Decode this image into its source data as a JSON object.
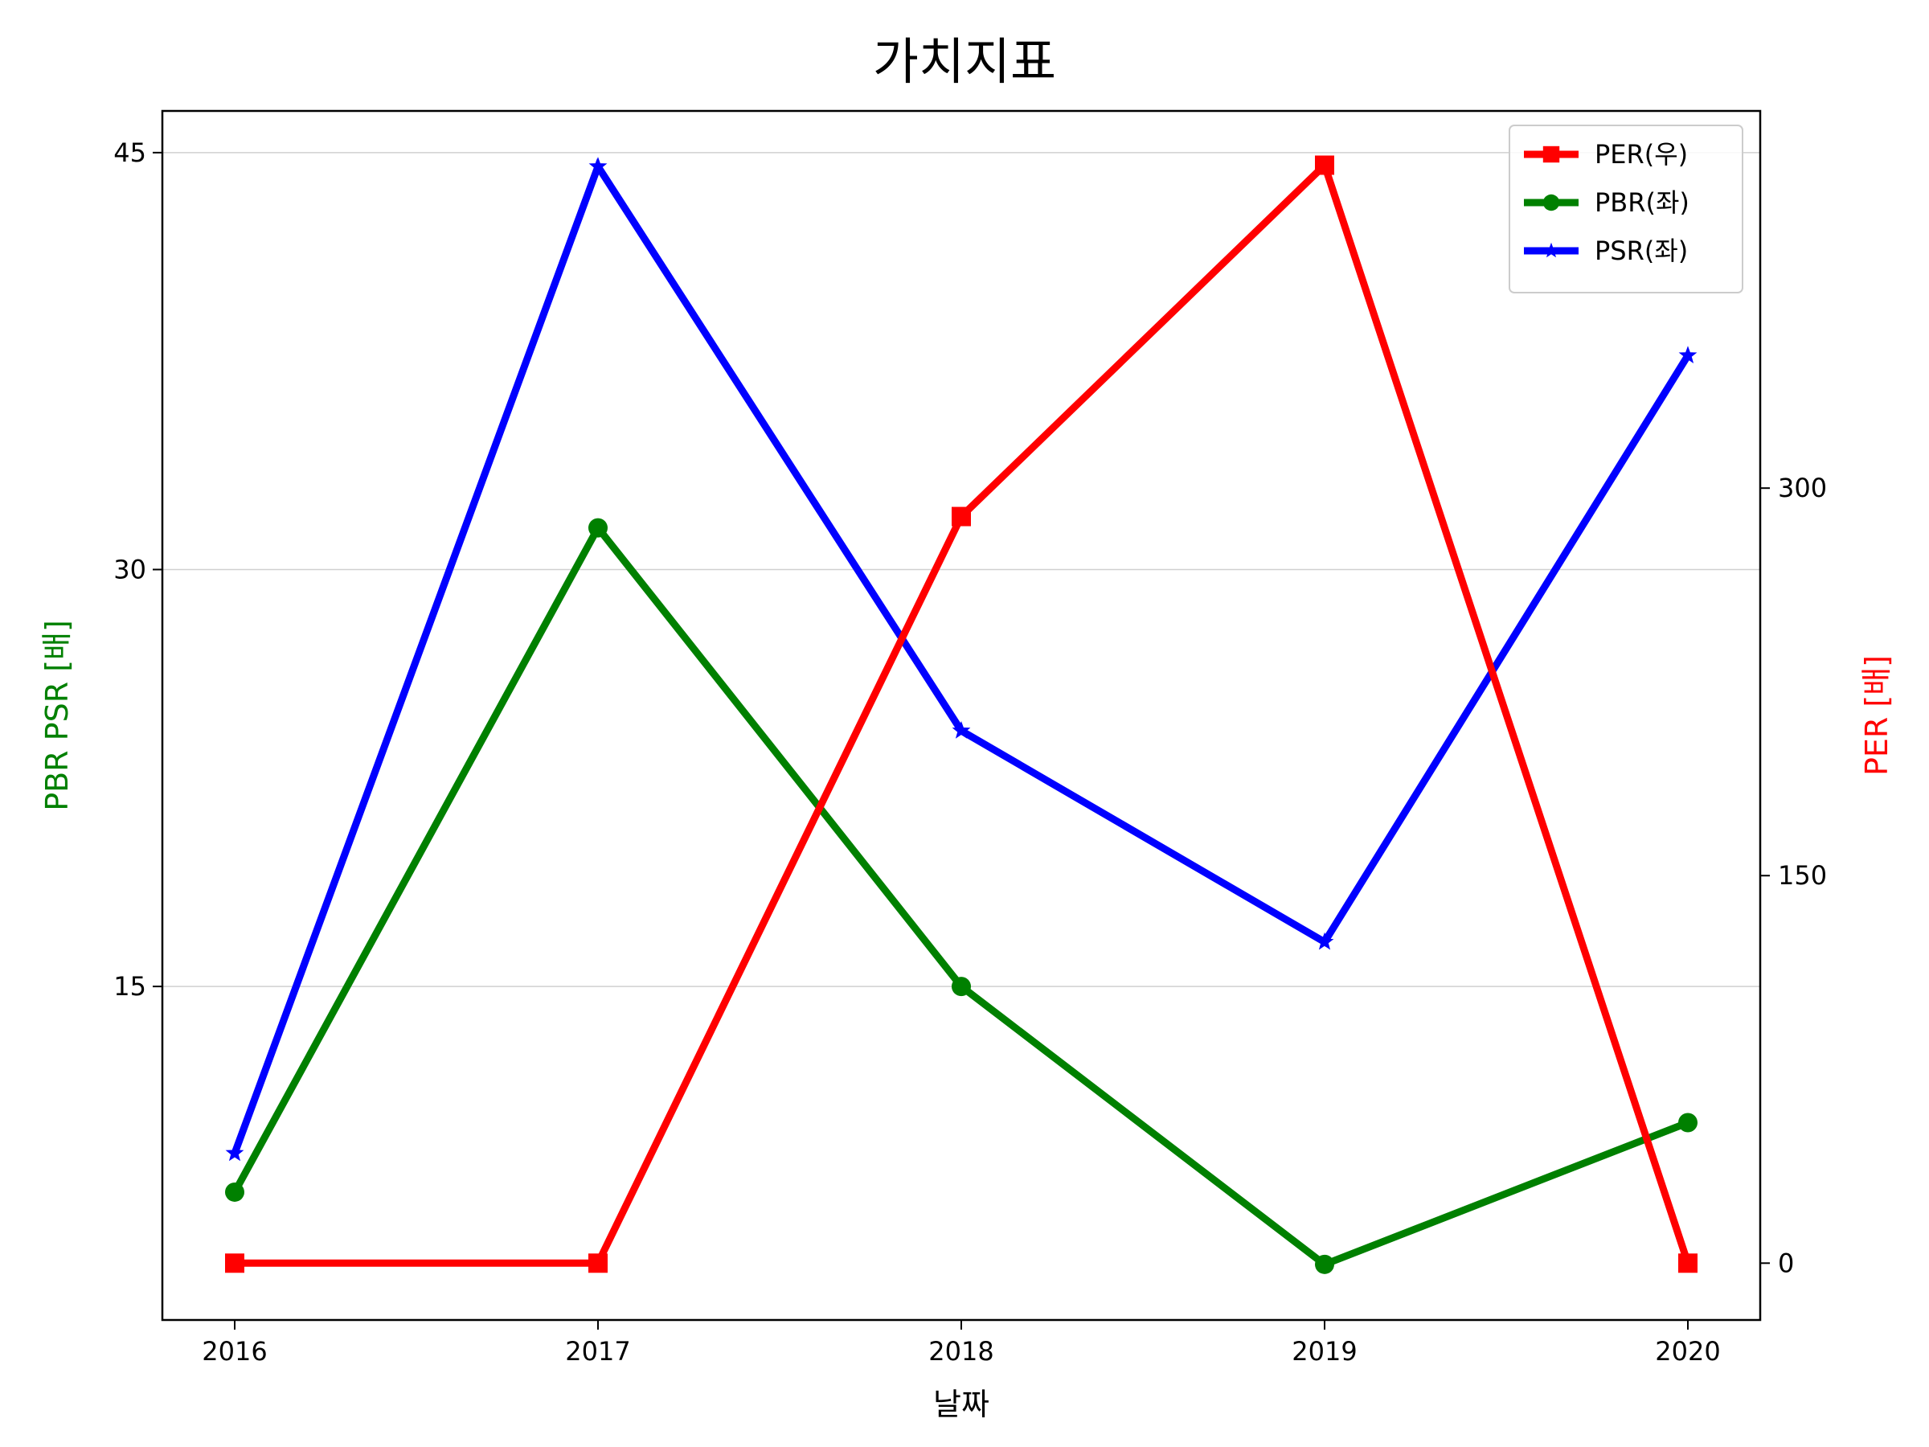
{
  "chart_data": {
    "type": "line",
    "title": "가치지표",
    "xlabel": "날짜",
    "ylabel_left": "PBR PSR [배]",
    "ylabel_right": "PER [배]",
    "categories": [
      "2016",
      "2017",
      "2018",
      "2019",
      "2020"
    ],
    "y_left": {
      "ticks": [
        "15",
        "30",
        "45"
      ],
      "tick_values": [
        15,
        30,
        45
      ],
      "range": [
        3,
        46.5
      ],
      "color": "#008000"
    },
    "y_right": {
      "ticks": [
        "0",
        "150",
        "300"
      ],
      "tick_values": [
        0,
        150,
        300
      ],
      "range": [
        -22,
        446
      ],
      "color": "#ff0000"
    },
    "grid": "horizontal-left",
    "legend_position": "top-right",
    "series": [
      {
        "name": "PER(우)",
        "axis": "right",
        "color": "#ff0000",
        "marker": "square",
        "values": [
          0,
          0,
          289,
          425,
          0
        ]
      },
      {
        "name": "PBR(좌)",
        "axis": "left",
        "color": "#008000",
        "marker": "circle",
        "values": [
          7.6,
          31.5,
          15.0,
          5.0,
          10.1
        ]
      },
      {
        "name": "PSR(좌)",
        "axis": "left",
        "color": "#0000ff",
        "marker": "star",
        "values": [
          9.0,
          44.5,
          24.2,
          16.6,
          37.7
        ]
      }
    ]
  }
}
